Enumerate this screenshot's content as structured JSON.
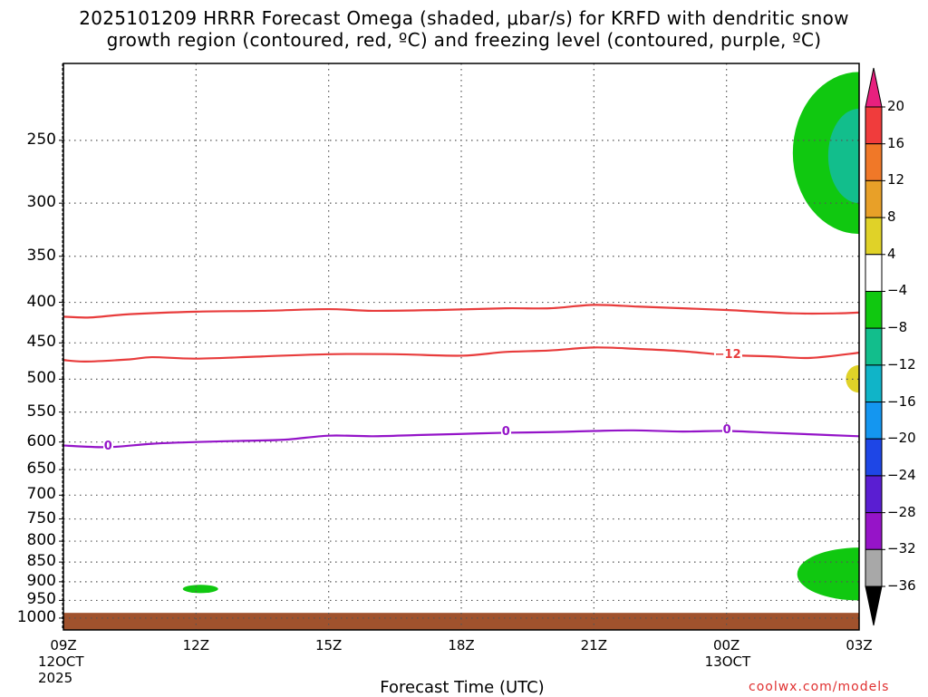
{
  "title_line1": "2025101209 HRRR Forecast Omega (shaded, μbar/s) for KRFD with dendritic snow",
  "title_line2": "growth region (contoured, red, ºC) and freezing level (contoured, purple, ºC)",
  "xlabel": "Forecast Time (UTC)",
  "credit": "coolwx.com/models",
  "chart_data": {
    "type": "heatmap",
    "title": "2025101209 HRRR Forecast Omega (shaded, μbar/s) for KRFD with dendritic snow growth region (contoured, red, ºC) and freezing level (contoured, purple, ºC)",
    "xlabel": "Forecast Time (UTC)",
    "ylabel": "",
    "y_scale": "log-pressure",
    "y_inverted": true,
    "x_range_hours": [
      0,
      18
    ],
    "y_range_hpa": [
      200,
      1035
    ],
    "grid": true,
    "x_ticks": [
      {
        "hour": 0,
        "label": "09Z",
        "sub1": "12OCT",
        "sub2": "2025"
      },
      {
        "hour": 3,
        "label": "12Z",
        "sub1": "",
        "sub2": ""
      },
      {
        "hour": 6,
        "label": "15Z",
        "sub1": "",
        "sub2": ""
      },
      {
        "hour": 9,
        "label": "18Z",
        "sub1": "",
        "sub2": ""
      },
      {
        "hour": 12,
        "label": "21Z",
        "sub1": "",
        "sub2": ""
      },
      {
        "hour": 15,
        "label": "00Z",
        "sub1": "13OCT",
        "sub2": ""
      },
      {
        "hour": 18,
        "label": "03Z",
        "sub1": "",
        "sub2": ""
      }
    ],
    "y_ticks": [
      250,
      300,
      350,
      400,
      450,
      500,
      550,
      600,
      650,
      700,
      750,
      800,
      850,
      900,
      950,
      1000
    ],
    "colorbar": {
      "labels": [
        "20",
        "16",
        "12",
        "8",
        "4",
        "−4",
        "−8",
        "−12",
        "−16",
        "−20",
        "−24",
        "−28",
        "−32",
        "−36"
      ],
      "colors": [
        "#e8207e",
        "#f03c3c",
        "#f07828",
        "#e8a028",
        "#e0d228",
        "#ffffff",
        "#10c810",
        "#12be8c",
        "#10b4c8",
        "#1496f0",
        "#1e46e6",
        "#5a1ed2",
        "#9614c8",
        "#a8a8a8",
        "#000000"
      ]
    },
    "contours": [
      {
        "color": "#e83c3c",
        "label": "",
        "points": [
          [
            0,
            417
          ],
          [
            0.6,
            418
          ],
          [
            1.5,
            414
          ],
          [
            3,
            411
          ],
          [
            4.5,
            410
          ],
          [
            6,
            408
          ],
          [
            7,
            410
          ],
          [
            8.5,
            409
          ],
          [
            10,
            407
          ],
          [
            11,
            407
          ],
          [
            12,
            403
          ],
          [
            13,
            405
          ],
          [
            14,
            407
          ],
          [
            15,
            409
          ],
          [
            16.5,
            413
          ],
          [
            17.5,
            413
          ],
          [
            18,
            412
          ]
        ]
      },
      {
        "color": "#e83c3c",
        "label": "−12",
        "label_at_hour": 15,
        "points": [
          [
            0,
            473
          ],
          [
            0.5,
            475
          ],
          [
            1.5,
            472
          ],
          [
            2,
            469
          ],
          [
            3,
            471
          ],
          [
            4.5,
            468
          ],
          [
            6,
            465
          ],
          [
            7.5,
            465
          ],
          [
            9,
            467
          ],
          [
            10,
            462
          ],
          [
            11,
            460
          ],
          [
            12,
            456
          ],
          [
            13,
            458
          ],
          [
            14,
            461
          ],
          [
            15,
            466
          ],
          [
            16,
            468
          ],
          [
            16.9,
            470
          ],
          [
            18,
            463
          ]
        ]
      },
      {
        "color": "#9414c8",
        "label": "0",
        "label_at_hour": [
          1,
          10,
          15
        ],
        "points": [
          [
            0,
            606
          ],
          [
            1,
            609
          ],
          [
            2,
            603
          ],
          [
            3,
            600
          ],
          [
            4,
            598
          ],
          [
            5,
            596
          ],
          [
            6,
            589
          ],
          [
            7,
            590
          ],
          [
            8,
            588
          ],
          [
            9,
            586
          ],
          [
            10,
            584
          ],
          [
            11,
            583
          ],
          [
            12,
            581
          ],
          [
            12.9,
            580
          ],
          [
            14,
            582
          ],
          [
            15,
            581
          ],
          [
            16,
            584
          ],
          [
            17,
            587
          ],
          [
            18,
            590
          ]
        ]
      }
    ],
    "omega_regions": [
      {
        "name": "negative-upper-right",
        "value_range": [
          -8,
          -4
        ],
        "hours": [
          16.5,
          18
        ],
        "pressure_hpa": [
          205,
          328
        ],
        "color": "#10c810"
      },
      {
        "name": "negative-upper-right-core",
        "value_range": [
          -12,
          -8
        ],
        "hours": [
          17.3,
          18
        ],
        "pressure_hpa": [
          228,
          300
        ],
        "color": "#12be8c"
      },
      {
        "name": "positive-right-edge",
        "value_range": [
          4,
          8
        ],
        "hours": [
          17.7,
          18
        ],
        "pressure_hpa": [
          480,
          520
        ],
        "color": "#e0d228"
      },
      {
        "name": "negative-lower-right",
        "value_range": [
          -8,
          -4
        ],
        "hours": [
          16.6,
          18
        ],
        "pressure_hpa": [
          815,
          950
        ],
        "color": "#10c810"
      },
      {
        "name": "negative-near-12z",
        "value_range": [
          -8,
          -4
        ],
        "hours": [
          2.7,
          3.5
        ],
        "pressure_hpa": [
          908,
          930
        ],
        "color": "#10c810"
      }
    ],
    "terrain": {
      "pressure_hpa_top": 985,
      "color": "#a0522d"
    }
  }
}
